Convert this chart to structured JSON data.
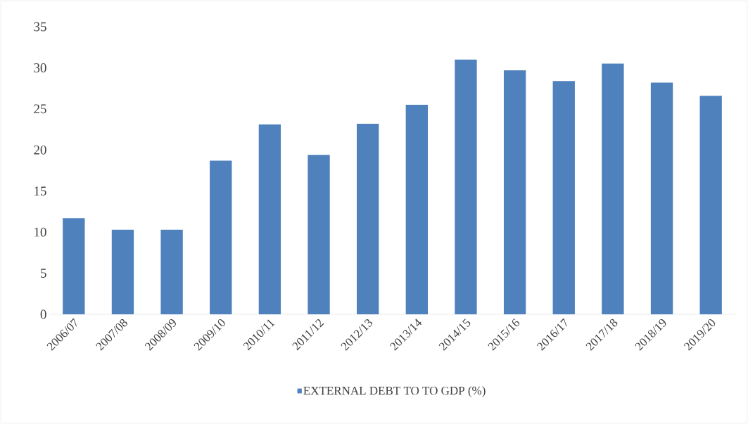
{
  "chart_data": {
    "type": "bar",
    "categories": [
      "2006/07",
      "2007/08",
      "2008/09",
      "2009/10",
      "2010/11",
      "2011/12",
      "2012/13",
      "2013/14",
      "2014/15",
      "2015/16",
      "2016/17",
      "2017/18",
      "2018/19",
      "2019/20"
    ],
    "series": [
      {
        "name": "EXTERNAL DEBT TO  TO GDP (%)",
        "color": "#4f81bd",
        "values": [
          11.7,
          10.3,
          10.3,
          18.7,
          23.1,
          19.4,
          23.2,
          25.5,
          31.0,
          29.7,
          28.4,
          30.5,
          28.2,
          26.6
        ]
      }
    ],
    "ylim": [
      0,
      35
    ],
    "yticks": [
      0,
      5,
      10,
      15,
      20,
      25,
      30,
      35
    ],
    "legend": "bottom"
  }
}
